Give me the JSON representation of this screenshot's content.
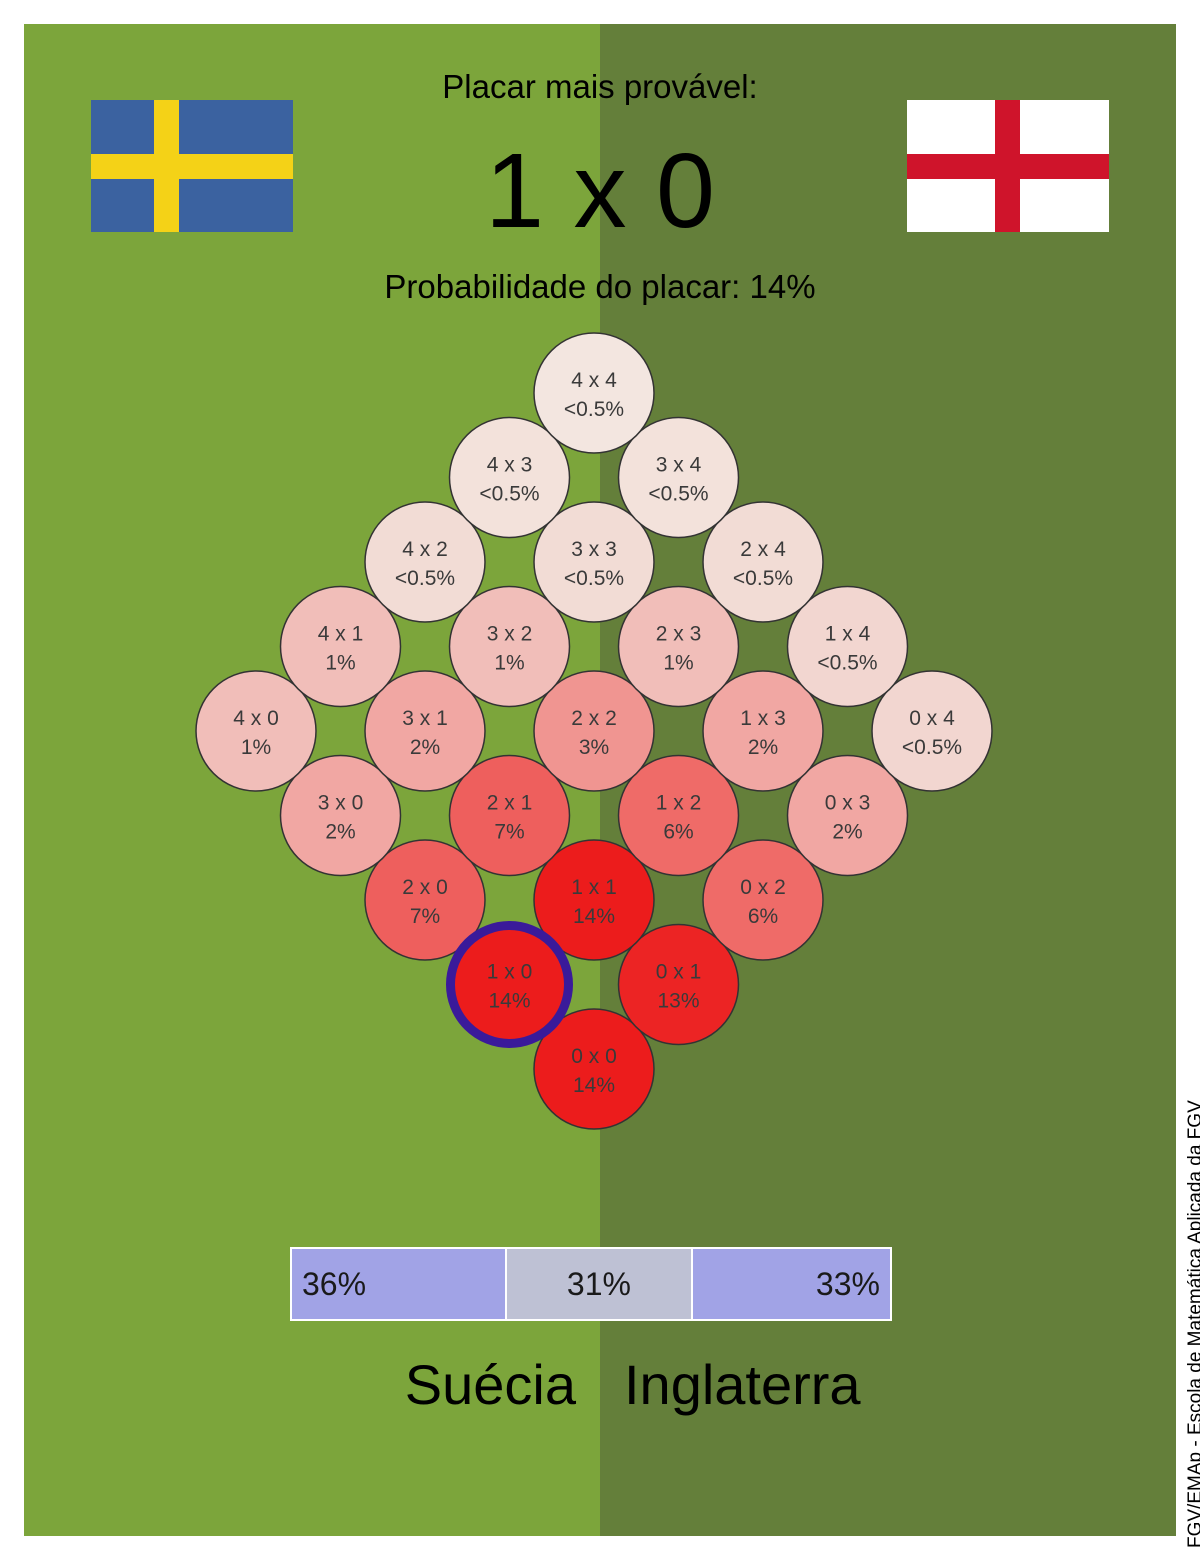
{
  "header": {
    "headline": "Placar mais provável:",
    "score": "1 x 0",
    "probability_text": "Probabilidade do placar: 14%"
  },
  "teams": {
    "home": {
      "name": "Suécia",
      "flag_icon": "sweden-flag-icon"
    },
    "away": {
      "name": "Inglaterra",
      "flag_icon": "england-flag-icon"
    }
  },
  "colors": {
    "field_left": "#7ca53b",
    "field_right": "#647f3a",
    "highlight_ring": "#3a1a9a",
    "bar_win": "#a1a3e6",
    "bar_draw": "#bec1d4"
  },
  "chart_data": {
    "type": "heatmap",
    "title": "Placar mais provável:",
    "highlighted": "1 x 0",
    "cells": [
      {
        "home": 0,
        "away": 0,
        "label": "0 x 0",
        "prob_text": "14%",
        "prob": 14
      },
      {
        "home": 1,
        "away": 0,
        "label": "1 x 0",
        "prob_text": "14%",
        "prob": 14
      },
      {
        "home": 0,
        "away": 1,
        "label": "0 x 1",
        "prob_text": "13%",
        "prob": 13
      },
      {
        "home": 2,
        "away": 0,
        "label": "2 x 0",
        "prob_text": "7%",
        "prob": 7
      },
      {
        "home": 1,
        "away": 1,
        "label": "1 x 1",
        "prob_text": "14%",
        "prob": 14
      },
      {
        "home": 0,
        "away": 2,
        "label": "0 x 2",
        "prob_text": "6%",
        "prob": 6
      },
      {
        "home": 3,
        "away": 0,
        "label": "3 x 0",
        "prob_text": "2%",
        "prob": 2
      },
      {
        "home": 2,
        "away": 1,
        "label": "2 x 1",
        "prob_text": "7%",
        "prob": 7
      },
      {
        "home": 1,
        "away": 2,
        "label": "1 x 2",
        "prob_text": "6%",
        "prob": 6
      },
      {
        "home": 0,
        "away": 3,
        "label": "0 x 3",
        "prob_text": "2%",
        "prob": 2
      },
      {
        "home": 4,
        "away": 0,
        "label": "4 x 0",
        "prob_text": "1%",
        "prob": 1
      },
      {
        "home": 3,
        "away": 1,
        "label": "3 x 1",
        "prob_text": "2%",
        "prob": 2
      },
      {
        "home": 2,
        "away": 2,
        "label": "2 x 2",
        "prob_text": "3%",
        "prob": 3
      },
      {
        "home": 1,
        "away": 3,
        "label": "1 x 3",
        "prob_text": "2%",
        "prob": 2
      },
      {
        "home": 0,
        "away": 4,
        "label": "0 x 4",
        "prob_text": "<0.5%",
        "prob": 0.3
      },
      {
        "home": 4,
        "away": 1,
        "label": "4 x 1",
        "prob_text": "1%",
        "prob": 1
      },
      {
        "home": 3,
        "away": 2,
        "label": "3 x 2",
        "prob_text": "1%",
        "prob": 1
      },
      {
        "home": 2,
        "away": 3,
        "label": "2 x 3",
        "prob_text": "1%",
        "prob": 1
      },
      {
        "home": 1,
        "away": 4,
        "label": "1 x 4",
        "prob_text": "<0.5%",
        "prob": 0.3
      },
      {
        "home": 4,
        "away": 2,
        "label": "4 x 2",
        "prob_text": "<0.5%",
        "prob": 0.2
      },
      {
        "home": 3,
        "away": 3,
        "label": "3 x 3",
        "prob_text": "<0.5%",
        "prob": 0.2
      },
      {
        "home": 2,
        "away": 4,
        "label": "2 x 4",
        "prob_text": "<0.5%",
        "prob": 0.2
      },
      {
        "home": 4,
        "away": 3,
        "label": "4 x 3",
        "prob_text": "<0.5%",
        "prob": 0.1
      },
      {
        "home": 3,
        "away": 4,
        "label": "3 x 4",
        "prob_text": "<0.5%",
        "prob": 0.1
      },
      {
        "home": 4,
        "away": 4,
        "label": "4 x 4",
        "prob_text": "<0.5%",
        "prob": 0.05
      }
    ]
  },
  "outcome_bar": {
    "home_win": 36,
    "draw": 31,
    "away_win": 33,
    "home_win_text": "36%",
    "draw_text": "31%",
    "away_win_text": "33%"
  },
  "credit": "FGV/EMAp - Escola de Matemática Aplicada da FGV"
}
